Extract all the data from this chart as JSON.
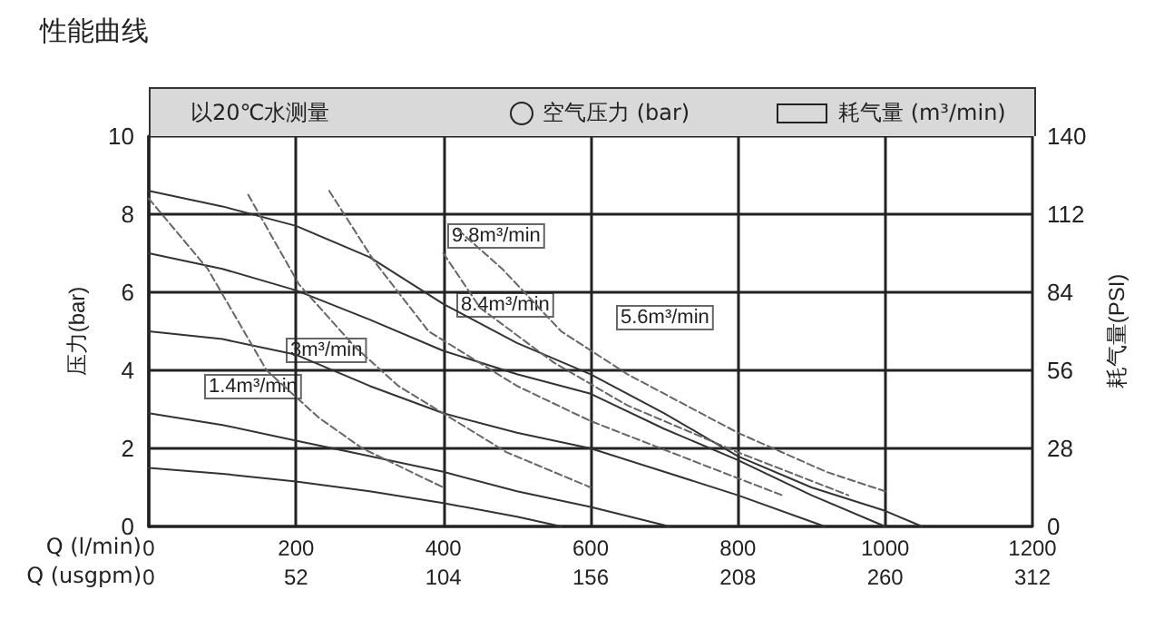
{
  "chart_data": {
    "type": "line",
    "title": "性能曲线",
    "xlabel": "Q (l/min)",
    "x2label": "Q (usgpm)",
    "ylabel": "压力(bar)",
    "y2label": "耗气量(PSI)",
    "xlim": [
      0,
      1200
    ],
    "xticks": [
      0,
      200,
      400,
      600,
      800,
      1000,
      1200
    ],
    "x2lim": [
      0,
      312
    ],
    "x2ticks": [
      0,
      52,
      104,
      156,
      208,
      260,
      312
    ],
    "ylim": [
      0,
      10
    ],
    "yticks": [
      0,
      2,
      4,
      6,
      8,
      10
    ],
    "y2lim": [
      0,
      140
    ],
    "y2ticks": [
      0,
      28,
      56,
      84,
      112,
      140
    ],
    "grid": true,
    "marker": "none",
    "series": [
      {
        "color": "#333333",
        "line_style": "solid",
        "x": [
          0,
          100,
          200,
          300,
          400,
          500,
          600,
          700,
          800,
          900,
          1000,
          1050
        ],
        "values": [
          8.6,
          8.2,
          7.7,
          6.9,
          5.7,
          4.7,
          3.9,
          2.9,
          1.8,
          1.0,
          0.4,
          0
        ]
      },
      {
        "color": "#333333",
        "line_style": "solid",
        "x": [
          0,
          100,
          200,
          300,
          400,
          500,
          600,
          700,
          800,
          900,
          1000
        ],
        "values": [
          7.0,
          6.6,
          6.05,
          5.3,
          4.5,
          3.9,
          3.4,
          2.5,
          1.7,
          0.8,
          0
        ]
      },
      {
        "color": "#333333",
        "line_style": "solid",
        "x": [
          0,
          100,
          200,
          300,
          400,
          500,
          600,
          700,
          800,
          918
        ],
        "values": [
          5.0,
          4.8,
          4.4,
          3.6,
          2.9,
          2.4,
          2.0,
          1.4,
          0.8,
          0
        ]
      },
      {
        "color": "#333333",
        "line_style": "solid",
        "x": [
          0,
          100,
          200,
          300,
          400,
          500,
          600,
          707
        ],
        "values": [
          2.9,
          2.6,
          2.2,
          1.8,
          1.4,
          0.9,
          0.5,
          0
        ]
      },
      {
        "color": "#333333",
        "line_style": "solid",
        "x": [
          0,
          100,
          200,
          300,
          400,
          500,
          560
        ],
        "values": [
          1.5,
          1.35,
          1.15,
          0.9,
          0.6,
          0.25,
          0
        ]
      },
      {
        "color": "#666666",
        "line_style": "dashed",
        "x": [
          0,
          80,
          160,
          230,
          290,
          400
        ],
        "values": [
          8.4,
          6.6,
          4.0,
          2.8,
          2.0,
          1.0
        ]
      },
      {
        "color": "#666666",
        "line_style": "dashed",
        "x": [
          135,
          204,
          280,
          339,
          486,
          600
        ],
        "values": [
          8.5,
          6.2,
          4.6,
          3.6,
          1.9,
          1.0
        ]
      },
      {
        "color": "#666666",
        "line_style": "dashed",
        "x": [
          245,
          306,
          380,
          500,
          600,
          750,
          860
        ],
        "values": [
          8.6,
          6.8,
          5.0,
          3.6,
          2.7,
          1.6,
          0.8
        ]
      },
      {
        "color": "#666666",
        "line_style": "dashed",
        "x": [
          400,
          450,
          550,
          650,
          800,
          950
        ],
        "values": [
          7.0,
          5.6,
          4.2,
          3.1,
          1.9,
          0.8
        ]
      },
      {
        "color": "#666666",
        "line_style": "dashed",
        "x": [
          420,
          480,
          560,
          650,
          800,
          920,
          1000
        ],
        "values": [
          7.6,
          6.6,
          5.0,
          3.9,
          2.4,
          1.4,
          0.9
        ]
      }
    ],
    "annotations": [
      "以20℃水测量",
      "空气压力 (bar)",
      "耗气量 (m³/min)",
      "9.8m³/min",
      "8.4m³/min",
      "3m³/min",
      "5.6m³/min",
      "1.4m³/min"
    ]
  }
}
